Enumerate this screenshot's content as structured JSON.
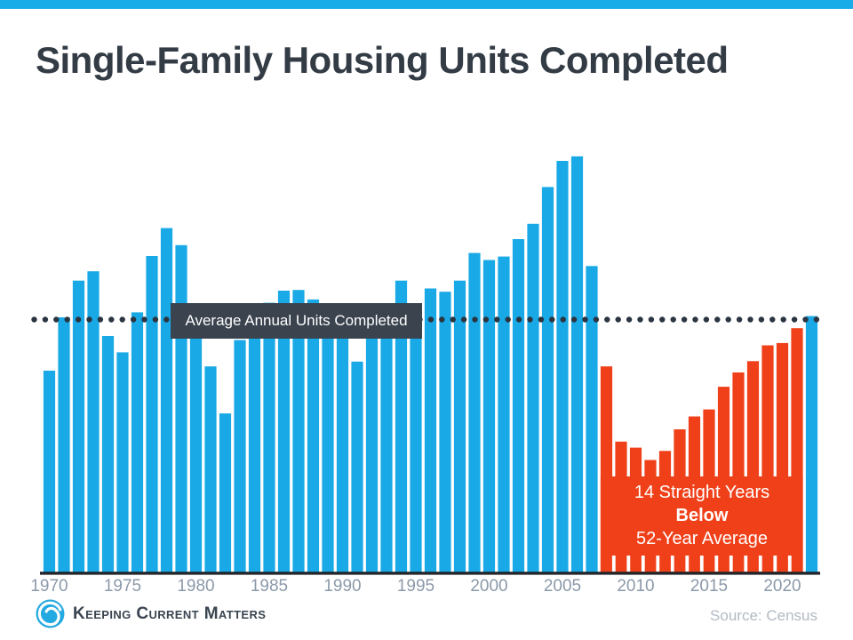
{
  "title": "Single-Family Housing Units Completed",
  "header": {
    "accent_color": "#18ACE8"
  },
  "average_label": "Average Annual Units Completed",
  "annotation": {
    "line1": "14 Straight Years",
    "line2": "Below",
    "line3": "52-Year Average"
  },
  "footer": {
    "logo_text": "Keeping Current Matters",
    "source": "Source: Census"
  },
  "chart_data": {
    "type": "bar",
    "title": "Single-Family Housing Units Completed",
    "xlabel": "",
    "ylabel": "",
    "x": [
      1970,
      1971,
      1972,
      1973,
      1974,
      1975,
      1976,
      1977,
      1978,
      1979,
      1980,
      1981,
      1982,
      1983,
      1984,
      1985,
      1986,
      1987,
      1988,
      1989,
      1990,
      1991,
      1992,
      1993,
      1994,
      1995,
      1996,
      1997,
      1998,
      1999,
      2000,
      2001,
      2002,
      2003,
      2004,
      2005,
      2006,
      2007,
      2008,
      2009,
      2010,
      2011,
      2012,
      2013,
      2014,
      2015,
      2016,
      2017,
      2018,
      2019,
      2020,
      2021,
      2022
    ],
    "values_thousands": [
      802,
      1014,
      1160,
      1197,
      940,
      875,
      1034,
      1258,
      1369,
      1301,
      957,
      819,
      632,
      924,
      1025,
      1072,
      1120,
      1123,
      1085,
      1026,
      966,
      838,
      964,
      1039,
      1160,
      1066,
      1129,
      1116,
      1160,
      1270,
      1242,
      1256,
      1325,
      1386,
      1532,
      1636,
      1654,
      1218,
      819,
      520,
      496,
      447,
      483,
      569,
      620,
      648,
      738,
      795,
      840,
      903,
      912,
      971,
      1019
    ],
    "x_tick_labels": [
      "1970",
      "1975",
      "1980",
      "1985",
      "1990",
      "1995",
      "2000",
      "2005",
      "2010",
      "2015",
      "2020"
    ],
    "average_line_label": "Average Annual Units Completed",
    "average_line_value_thousands": 1005,
    "below_average_span": {
      "start_year": 2008,
      "end_year": 2021,
      "count": 14
    },
    "annotation_lines": [
      "14 Straight Years",
      "Below",
      "52-Year Average"
    ],
    "colors": {
      "bar_above": "#18A9E6",
      "bar_below": "#F04019",
      "dotted_line": "#2B3541",
      "axis_line": "#22262B",
      "tick_label": "#8B99A9",
      "average_box_bg": "#3A434E"
    },
    "layout": {
      "x_range": [
        1970,
        2022
      ],
      "grid": false,
      "legend": false,
      "average_line_style": "dotted"
    }
  }
}
